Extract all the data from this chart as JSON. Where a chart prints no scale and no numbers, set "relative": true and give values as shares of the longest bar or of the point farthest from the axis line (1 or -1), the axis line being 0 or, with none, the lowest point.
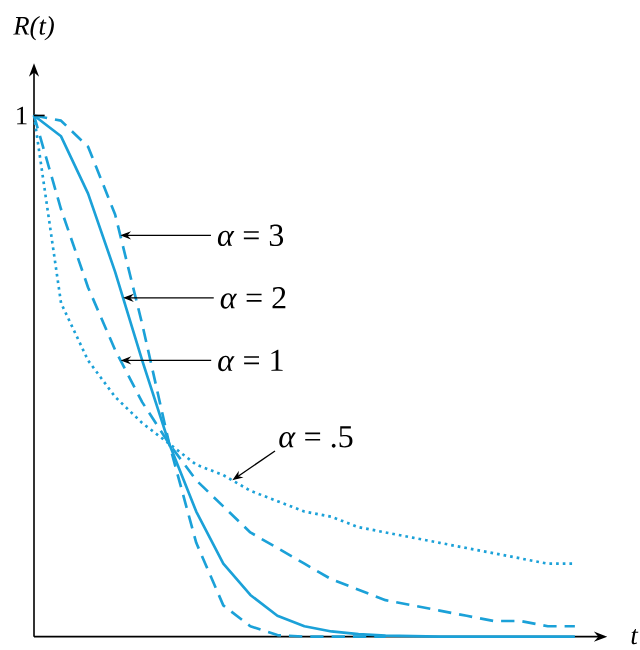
{
  "chart_data": {
    "type": "line",
    "relative": true,
    "xlabel": "t",
    "ylabel": "R(t)",
    "marker": "none",
    "categories": [
      null,
      null,
      null,
      null,
      null,
      null,
      null,
      null,
      null,
      null,
      null,
      null,
      null,
      null,
      null,
      null,
      null,
      null,
      null,
      null,
      null
    ],
    "series": [
      {
        "color": "#1ba1d8",
        "line_style": "dashed",
        "values": [
          1,
          0.99,
          0.94,
          0.81,
          0.6,
          0.37,
          0.18,
          0.06,
          0.02,
          0.003,
          0,
          0,
          0,
          0,
          null,
          null,
          null,
          null,
          null,
          null,
          null
        ]
      },
      {
        "color": "#1ba1d8",
        "line_style": "solid",
        "values": [
          1,
          0.96,
          0.85,
          0.7,
          0.53,
          0.37,
          0.24,
          0.14,
          0.08,
          0.04,
          0.02,
          0.01,
          0.005,
          0.002,
          0.001,
          0,
          0,
          0,
          0,
          0,
          0
        ]
      },
      {
        "color": "#1ba1d8",
        "line_style": "dashed",
        "values": [
          1,
          0.82,
          0.67,
          0.55,
          0.45,
          0.37,
          0.3,
          0.25,
          0.2,
          0.17,
          0.14,
          0.11,
          0.09,
          0.07,
          0.06,
          0.05,
          0.04,
          0.03,
          0.03,
          0.02,
          0.02
        ]
      },
      {
        "color": "#1ba1d8",
        "line_style": "dotted",
        "values": [
          1,
          0.64,
          0.53,
          0.46,
          0.41,
          0.37,
          0.33,
          0.31,
          0.28,
          0.26,
          0.24,
          0.23,
          0.21,
          0.2,
          0.19,
          0.18,
          0.17,
          0.16,
          0.15,
          0.14,
          0.14
        ]
      }
    ],
    "annotations": [
      "*α* = 3",
      "*α* = 2",
      "*α* = 1",
      "*α* = .5",
      "1"
    ]
  }
}
